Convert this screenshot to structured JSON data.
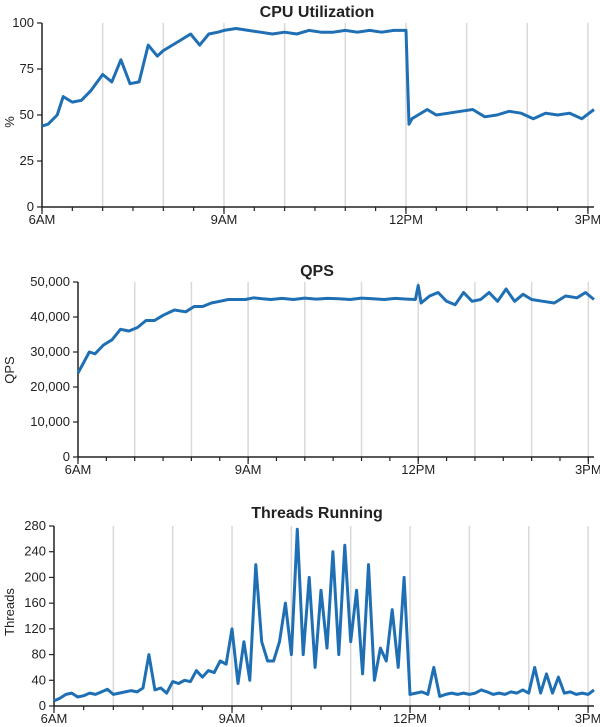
{
  "chart_data": [
    {
      "type": "line",
      "title": "CPU Utilization",
      "ylabel": "%",
      "xlabel": "",
      "ylim": [
        0,
        100
      ],
      "yticks": [
        0,
        25,
        50,
        75,
        100
      ],
      "ytick_labels": [
        "0",
        "25",
        "50",
        "75",
        "100"
      ],
      "xlim": [
        6,
        15.1
      ],
      "xticks": [
        6,
        9,
        12,
        15
      ],
      "xtick_labels": [
        "6AM",
        "9AM",
        "12PM",
        "3PM"
      ],
      "x_axis_unit": "hour of day",
      "grid": true,
      "color": "#1f6fb4",
      "series": [
        {
          "x": [
            6,
            6.1,
            6.25,
            6.35,
            6.5,
            6.65,
            6.8,
            7,
            7.15,
            7.3,
            7.45,
            7.6,
            7.75,
            7.9,
            8,
            8.15,
            8.3,
            8.45,
            8.6,
            8.75,
            8.9,
            9,
            9.2,
            9.4,
            9.6,
            9.8,
            10,
            10.2,
            10.4,
            10.6,
            10.8,
            11,
            11.2,
            11.4,
            11.6,
            11.8,
            11.95,
            12,
            12.05,
            12.1,
            12.2,
            12.35,
            12.5,
            12.7,
            12.9,
            13.1,
            13.3,
            13.5,
            13.7,
            13.9,
            14.1,
            14.3,
            14.5,
            14.7,
            14.9,
            15.1
          ],
          "y": [
            44,
            45,
            50,
            60,
            57,
            58,
            63,
            72,
            68,
            80,
            67,
            68,
            88,
            82,
            85,
            88,
            91,
            94,
            88,
            94,
            95,
            96,
            97,
            96,
            95,
            94,
            95,
            94,
            96,
            95,
            95,
            96,
            95,
            96,
            95,
            96,
            96,
            96,
            45,
            48,
            50,
            53,
            50,
            51,
            52,
            53,
            49,
            50,
            52,
            51,
            48,
            51,
            50,
            51,
            48,
            53
          ]
        }
      ]
    },
    {
      "type": "line",
      "title": "QPS",
      "ylabel": "QPS",
      "xlabel": "",
      "ylim": [
        0,
        50000
      ],
      "yticks": [
        0,
        10000,
        20000,
        30000,
        40000,
        50000
      ],
      "ytick_labels": [
        "0",
        "10,000",
        "20,000",
        "30,000",
        "40,000",
        "50,000"
      ],
      "xlim": [
        6,
        15.1
      ],
      "xticks": [
        6,
        9,
        12,
        15
      ],
      "xtick_labels": [
        "6AM",
        "9AM",
        "12PM",
        "3PM"
      ],
      "x_axis_unit": "hour of day",
      "grid": true,
      "color": "#1f6fb4",
      "series": [
        {
          "x": [
            6,
            6.1,
            6.2,
            6.3,
            6.45,
            6.6,
            6.75,
            6.9,
            7.05,
            7.2,
            7.35,
            7.5,
            7.7,
            7.9,
            8.05,
            8.2,
            8.35,
            8.5,
            8.65,
            8.8,
            8.95,
            9.1,
            9.25,
            9.4,
            9.6,
            9.8,
            10,
            10.2,
            10.4,
            10.6,
            10.8,
            11,
            11.2,
            11.4,
            11.6,
            11.8,
            11.95,
            12,
            12.05,
            12.2,
            12.35,
            12.5,
            12.65,
            12.8,
            12.95,
            13.1,
            13.25,
            13.4,
            13.55,
            13.7,
            13.85,
            14,
            14.2,
            14.4,
            14.6,
            14.8,
            14.95,
            15.1
          ],
          "y": [
            24000,
            27000,
            30000,
            29500,
            32000,
            33500,
            36500,
            36000,
            37000,
            39000,
            39000,
            40500,
            42000,
            41500,
            43000,
            43000,
            44000,
            44500,
            45000,
            45000,
            45000,
            45500,
            45200,
            45000,
            45300,
            45000,
            45400,
            45100,
            45300,
            45200,
            45000,
            45400,
            45200,
            45000,
            45300,
            45100,
            45000,
            49000,
            44000,
            46000,
            47000,
            44500,
            43500,
            47000,
            44500,
            45000,
            47000,
            44500,
            48000,
            44500,
            46500,
            45000,
            44500,
            44000,
            46000,
            45500,
            47000,
            45000
          ]
        }
      ]
    },
    {
      "type": "line",
      "title": "Threads Running",
      "ylabel": "Threads",
      "xlabel": "",
      "ylim": [
        0,
        280
      ],
      "yticks": [
        0,
        40,
        80,
        120,
        160,
        200,
        240,
        280
      ],
      "ytick_labels": [
        "0",
        "40",
        "80",
        "120",
        "160",
        "200",
        "240",
        "280"
      ],
      "xlim": [
        6,
        15.1
      ],
      "xticks": [
        6,
        9,
        12,
        15
      ],
      "xtick_labels": [
        "6AM",
        "9AM",
        "12PM",
        "3PM"
      ],
      "x_axis_unit": "hour of day",
      "grid": true,
      "color": "#1f6fb4",
      "series": [
        {
          "x": [
            6,
            6.1,
            6.2,
            6.3,
            6.4,
            6.5,
            6.6,
            6.7,
            6.8,
            6.9,
            7,
            7.1,
            7.2,
            7.3,
            7.4,
            7.5,
            7.6,
            7.7,
            7.8,
            7.9,
            8,
            8.1,
            8.2,
            8.3,
            8.4,
            8.5,
            8.6,
            8.7,
            8.8,
            8.9,
            9,
            9.1,
            9.2,
            9.3,
            9.4,
            9.5,
            9.6,
            9.7,
            9.8,
            9.9,
            10,
            10.1,
            10.2,
            10.3,
            10.4,
            10.5,
            10.6,
            10.7,
            10.8,
            10.9,
            11,
            11.1,
            11.2,
            11.3,
            11.4,
            11.5,
            11.6,
            11.7,
            11.8,
            11.9,
            12,
            12.1,
            12.2,
            12.3,
            12.4,
            12.5,
            12.6,
            12.7,
            12.8,
            12.9,
            13,
            13.1,
            13.2,
            13.3,
            13.4,
            13.5,
            13.6,
            13.7,
            13.8,
            13.9,
            14,
            14.1,
            14.2,
            14.3,
            14.4,
            14.5,
            14.6,
            14.7,
            14.8,
            14.9,
            15,
            15.1
          ],
          "y": [
            8,
            12,
            18,
            20,
            14,
            16,
            20,
            18,
            22,
            26,
            18,
            20,
            22,
            24,
            22,
            28,
            80,
            25,
            28,
            20,
            38,
            35,
            40,
            38,
            55,
            45,
            55,
            52,
            70,
            65,
            120,
            35,
            100,
            40,
            220,
            100,
            70,
            70,
            100,
            160,
            80,
            275,
            80,
            200,
            60,
            180,
            90,
            240,
            80,
            250,
            100,
            180,
            50,
            220,
            40,
            90,
            70,
            150,
            60,
            200,
            18,
            20,
            22,
            18,
            60,
            15,
            18,
            20,
            18,
            20,
            18,
            20,
            25,
            22,
            18,
            20,
            18,
            22,
            20,
            25,
            20,
            60,
            20,
            50,
            20,
            45,
            20,
            22,
            18,
            20,
            18,
            25
          ]
        }
      ]
    }
  ]
}
